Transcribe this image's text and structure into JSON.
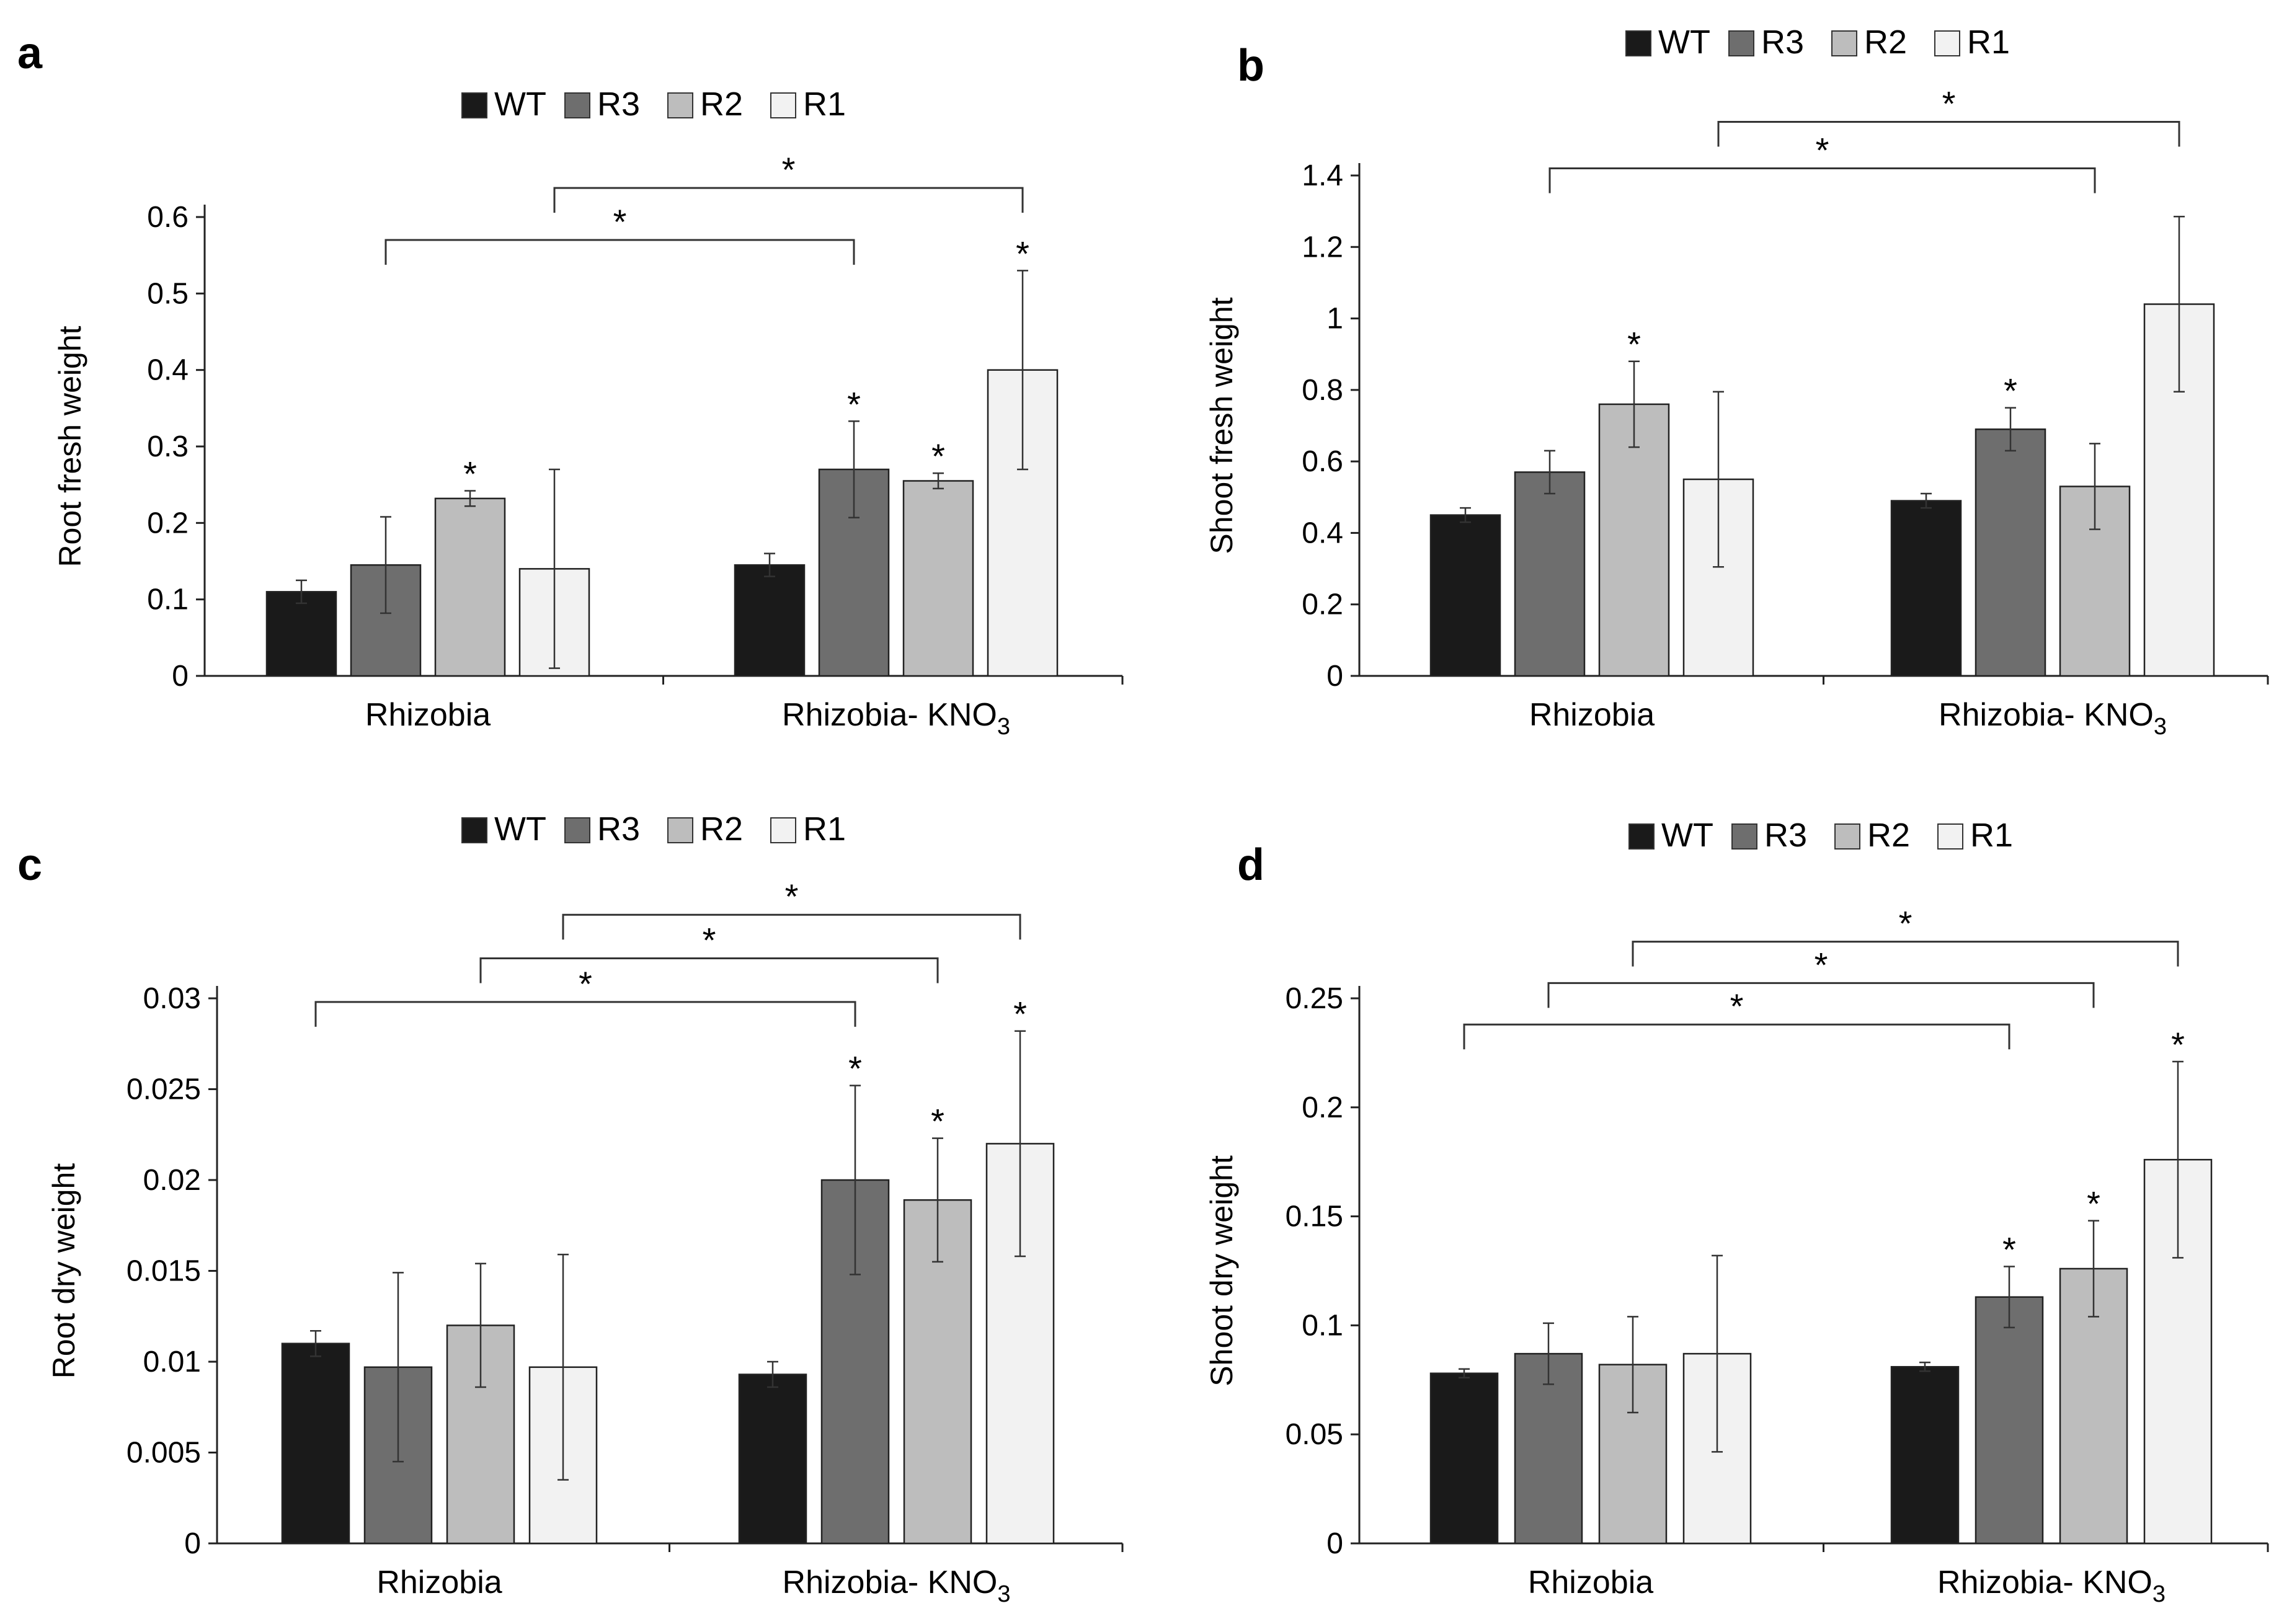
{
  "legend": [
    {
      "name": "WT",
      "color": "#1a1a1a"
    },
    {
      "name": "R3",
      "color": "#6e6e6e"
    },
    {
      "name": "R2",
      "color": "#bdbdbd"
    },
    {
      "name": "R1",
      "color": "#f2f2f2"
    }
  ],
  "categories": [
    "Rhizobia",
    "Rhizobia- KNO"
  ],
  "subscript": "3",
  "star": "*",
  "chart_data": [
    {
      "panel": "a",
      "type": "bar",
      "ylabel": "Root fresh weight",
      "ylim": [
        0,
        0.6
      ],
      "yticks": [
        0,
        0.1,
        0.2,
        0.3,
        0.4,
        0.5,
        0.6
      ],
      "ytick_labels": [
        "0",
        "0.1",
        "0.2",
        "0.3",
        "0.4",
        "0.5",
        "0.6"
      ],
      "categories": [
        "Rhizobia",
        "Rhizobia- KNO3"
      ],
      "series": [
        {
          "name": "WT",
          "values": [
            0.11,
            0.145
          ],
          "errors": [
            0.015,
            0.015
          ],
          "stars": [
            false,
            false
          ]
        },
        {
          "name": "R3",
          "values": [
            0.145,
            0.27
          ],
          "errors": [
            0.063,
            0.063
          ],
          "stars": [
            false,
            true
          ]
        },
        {
          "name": "R2",
          "values": [
            0.232,
            0.255
          ],
          "errors": [
            0.01,
            0.01
          ],
          "stars": [
            true,
            true
          ]
        },
        {
          "name": "R1",
          "values": [
            0.14,
            0.4
          ],
          "errors": [
            0.13,
            0.13
          ],
          "stars": [
            false,
            true
          ]
        }
      ],
      "brackets": [
        {
          "from": [
            0,
            1
          ],
          "to": [
            1,
            1
          ],
          "y": 0.57
        },
        {
          "from": [
            0,
            3
          ],
          "to": [
            1,
            3
          ],
          "y": 0.638
        }
      ]
    },
    {
      "panel": "b",
      "type": "bar",
      "ylabel": "Shoot fresh weight",
      "ylim": [
        0,
        1.4
      ],
      "yticks": [
        0,
        0.2,
        0.4,
        0.6,
        0.8,
        1.0,
        1.2,
        1.4
      ],
      "ytick_labels": [
        "0",
        "0.2",
        "0.4",
        "0.6",
        "0.8",
        "1",
        "1.2",
        "1.4"
      ],
      "categories": [
        "Rhizobia",
        "Rhizobia- KNO3"
      ],
      "series": [
        {
          "name": "WT",
          "values": [
            0.45,
            0.49
          ],
          "errors": [
            0.02,
            0.02
          ],
          "stars": [
            false,
            false
          ]
        },
        {
          "name": "R3",
          "values": [
            0.57,
            0.69
          ],
          "errors": [
            0.06,
            0.06
          ],
          "stars": [
            false,
            true
          ]
        },
        {
          "name": "R2",
          "values": [
            0.76,
            0.53
          ],
          "errors": [
            0.12,
            0.12
          ],
          "stars": [
            true,
            false
          ]
        },
        {
          "name": "R1",
          "values": [
            0.55,
            1.04
          ],
          "errors": [
            0.245,
            0.245
          ],
          "stars": [
            false,
            false
          ]
        }
      ],
      "brackets": [
        {
          "from": [
            0,
            1
          ],
          "to": [
            1,
            2
          ],
          "y": 1.42
        },
        {
          "from": [
            0,
            3
          ],
          "to": [
            1,
            3
          ],
          "y": 1.55
        }
      ]
    },
    {
      "panel": "c",
      "type": "bar",
      "ylabel": "Root dry weight",
      "ylim": [
        0,
        0.03
      ],
      "yticks": [
        0,
        0.005,
        0.01,
        0.015,
        0.02,
        0.025,
        0.03
      ],
      "ytick_labels": [
        "0",
        "0.005",
        "0.01",
        "0.015",
        "0.02",
        "0.025",
        "0.03"
      ],
      "categories": [
        "Rhizobia",
        "Rhizobia- KNO3"
      ],
      "series": [
        {
          "name": "WT",
          "values": [
            0.011,
            0.0093
          ],
          "errors": [
            0.0007,
            0.0007
          ],
          "stars": [
            false,
            false
          ]
        },
        {
          "name": "R3",
          "values": [
            0.0097,
            0.02
          ],
          "errors": [
            0.0052,
            0.0052
          ],
          "stars": [
            false,
            true
          ]
        },
        {
          "name": "R2",
          "values": [
            0.012,
            0.0189
          ],
          "errors": [
            0.0034,
            0.0034
          ],
          "stars": [
            false,
            true
          ]
        },
        {
          "name": "R1",
          "values": [
            0.0097,
            0.022
          ],
          "errors": [
            0.0062,
            0.0062
          ],
          "stars": [
            false,
            true
          ]
        }
      ],
      "brackets": [
        {
          "from": [
            0,
            0
          ],
          "to": [
            1,
            1
          ],
          "y": 0.0298
        },
        {
          "from": [
            0,
            2
          ],
          "to": [
            1,
            2
          ],
          "y": 0.0322
        },
        {
          "from": [
            0,
            3
          ],
          "to": [
            1,
            3
          ],
          "y": 0.0346
        }
      ]
    },
    {
      "panel": "d",
      "type": "bar",
      "ylabel": "Shoot dry weight",
      "ylim": [
        0,
        0.25
      ],
      "yticks": [
        0,
        0.05,
        0.1,
        0.15,
        0.2,
        0.25
      ],
      "ytick_labels": [
        "0",
        "0.05",
        "0.1",
        "0.15",
        "0.2",
        "0.25"
      ],
      "categories": [
        "Rhizobia",
        "Rhizobia- KNO3"
      ],
      "series": [
        {
          "name": "WT",
          "values": [
            0.078,
            0.081
          ],
          "errors": [
            0.002,
            0.002
          ],
          "stars": [
            false,
            false
          ]
        },
        {
          "name": "R3",
          "values": [
            0.087,
            0.113
          ],
          "errors": [
            0.014,
            0.014
          ],
          "stars": [
            false,
            true
          ]
        },
        {
          "name": "R2",
          "values": [
            0.082,
            0.126
          ],
          "errors": [
            0.022,
            0.022
          ],
          "stars": [
            false,
            true
          ]
        },
        {
          "name": "R1",
          "values": [
            0.087,
            0.176
          ],
          "errors": [
            0.045,
            0.045
          ],
          "stars": [
            false,
            true
          ]
        }
      ],
      "brackets": [
        {
          "from": [
            0,
            0
          ],
          "to": [
            1,
            1
          ],
          "y": 0.238
        },
        {
          "from": [
            0,
            1
          ],
          "to": [
            1,
            2
          ],
          "y": 0.257
        },
        {
          "from": [
            0,
            2
          ],
          "to": [
            1,
            3
          ],
          "y": 0.276
        }
      ]
    }
  ]
}
